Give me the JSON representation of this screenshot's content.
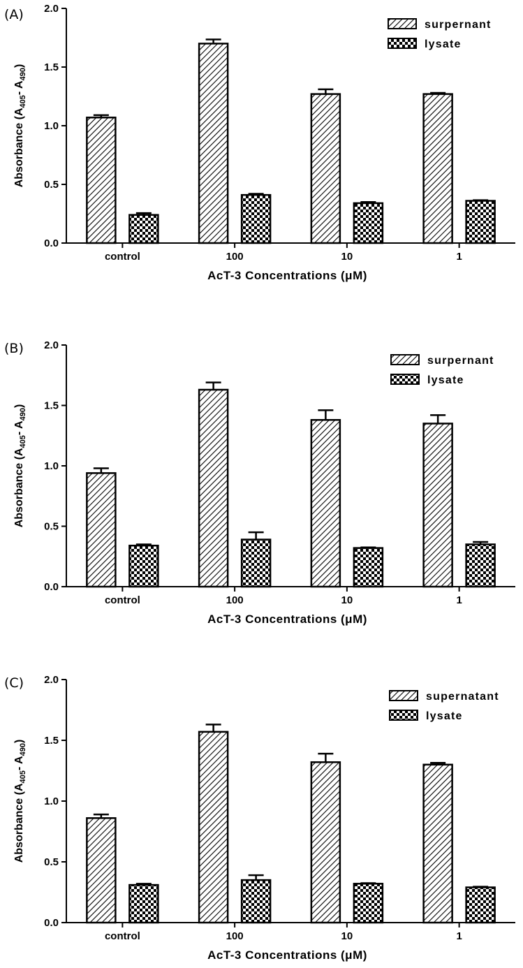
{
  "chart_data": [
    {
      "panel_label": "(A)",
      "type": "bar",
      "title": "",
      "xlabel": "AcT-3 Concentrations (μM)",
      "ylabel": "Absorbance (A405- A490)",
      "ylabel_main": "Absorbance (A",
      "ylabel_sub1": "405",
      "ylabel_mid": "- A",
      "ylabel_sub2": "490",
      "ylabel_end": ")",
      "ylim": [
        0,
        2.0
      ],
      "yticks": [
        "0.0",
        "0.5",
        "1.0",
        "1.5",
        "2.0"
      ],
      "categories": [
        "control",
        "100",
        "10",
        "1"
      ],
      "legend_position": "top-right",
      "series": [
        {
          "name": "surpernant",
          "pattern": "diagonal-hatch",
          "values": [
            1.07,
            1.7,
            1.27,
            1.27
          ],
          "errors": [
            0.02,
            0.035,
            0.04,
            0.01
          ]
        },
        {
          "name": "lysate",
          "pattern": "checker",
          "values": [
            0.24,
            0.41,
            0.34,
            0.36
          ],
          "errors": [
            0.015,
            0.01,
            0.01,
            0.005
          ]
        }
      ]
    },
    {
      "panel_label": "(B)",
      "type": "bar",
      "title": "",
      "xlabel": "AcT-3 Concentrations (μM)",
      "ylabel": "Absorbance (A405- A490)",
      "ylabel_main": "Absorbance (A",
      "ylabel_sub1": "405",
      "ylabel_mid": "- A",
      "ylabel_sub2": "490",
      "ylabel_end": ")",
      "ylim": [
        0,
        2.0
      ],
      "yticks": [
        "0.0",
        "0.5",
        "1.0",
        "1.5",
        "2.0"
      ],
      "categories": [
        "control",
        "100",
        "10",
        "1"
      ],
      "legend_position": "top-right",
      "series": [
        {
          "name": "surpernant",
          "pattern": "diagonal-hatch",
          "values": [
            0.94,
            1.63,
            1.38,
            1.35
          ],
          "errors": [
            0.04,
            0.06,
            0.08,
            0.07
          ]
        },
        {
          "name": "lysate",
          "pattern": "checker",
          "values": [
            0.34,
            0.39,
            0.32,
            0.35
          ],
          "errors": [
            0.01,
            0.06,
            0.005,
            0.02
          ]
        }
      ]
    },
    {
      "panel_label": "(C)",
      "type": "bar",
      "title": "",
      "xlabel": "AcT-3 Concentrations (μM)",
      "ylabel": "Absorbance (A405- A490)",
      "ylabel_main": "Absorbance (A",
      "ylabel_sub1": "405",
      "ylabel_mid": "- A",
      "ylabel_sub2": "490",
      "ylabel_end": ")",
      "ylim": [
        0,
        2.0
      ],
      "yticks": [
        "0.0",
        "0.5",
        "1.0",
        "1.5",
        "2.0"
      ],
      "categories": [
        "control",
        "100",
        "10",
        "1"
      ],
      "legend_position": "top-right",
      "series": [
        {
          "name": "supernatant",
          "pattern": "diagonal-hatch",
          "values": [
            0.86,
            1.57,
            1.32,
            1.3
          ],
          "errors": [
            0.03,
            0.06,
            0.07,
            0.015
          ]
        },
        {
          "name": "lysate",
          "pattern": "checker",
          "values": [
            0.31,
            0.35,
            0.32,
            0.29
          ],
          "errors": [
            0.01,
            0.04,
            0.005,
            0.005
          ]
        }
      ]
    }
  ]
}
